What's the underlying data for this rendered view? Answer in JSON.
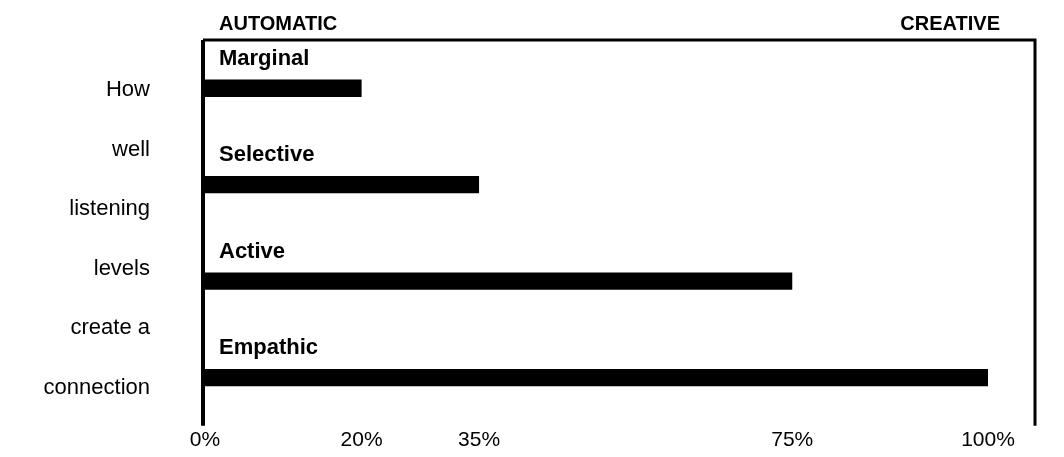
{
  "chart_data": {
    "type": "bar",
    "orientation": "horizontal",
    "ylabel": "How well listening levels create a connection",
    "categories": [
      "Marginal",
      "Selective",
      "Active",
      "Empathic"
    ],
    "values": [
      20,
      35,
      75,
      100
    ],
    "color": "#000000",
    "xlim": [
      0,
      106
    ],
    "xticks": [
      {
        "value": 0,
        "label": "0%"
      },
      {
        "value": 20,
        "label": "20%"
      },
      {
        "value": 35,
        "label": "35%"
      },
      {
        "value": 75,
        "label": "75%"
      },
      {
        "value": 100,
        "label": "100%"
      }
    ],
    "annotations": [
      "AUTOMATIC",
      "CREATIVE"
    ],
    "grid": false,
    "legend": false,
    "tick_labels": "x"
  }
}
